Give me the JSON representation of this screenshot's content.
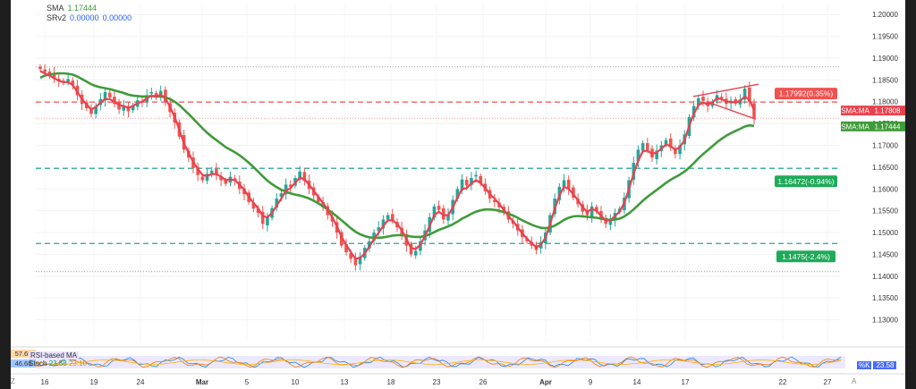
{
  "legend": {
    "sma_label": "SMA",
    "sma_value": "1.17444",
    "srv_label": "SRv2",
    "srv_value1": "0.00000",
    "srv_value2": "0.00000"
  },
  "colors": {
    "up": "#26a69a",
    "down": "#ef5350",
    "sma_fast": "#e8424f",
    "sma_slow": "#3f9b3a",
    "resistance": "#ef5350",
    "support": "#26a69a"
  },
  "chart_data": {
    "type": "candlestick",
    "symbol_hint": "EURUSD-like",
    "ylim": [
      1.125,
      1.2025
    ],
    "y_ticks": [
      "1.20000",
      "1.19500",
      "1.19000",
      "1.18500",
      "1.18000",
      "1.17500",
      "1.17000",
      "1.16500",
      "1.16000",
      "1.15500",
      "1.15000",
      "1.14500",
      "1.14000",
      "1.13500",
      "1.13000"
    ],
    "x_ticks": [
      "16",
      "19",
      "24",
      "Mar",
      "5",
      "10",
      "13",
      "18",
      "23",
      "26",
      "Apr",
      "9",
      "14",
      "17",
      "22",
      "27"
    ],
    "candles_close": [
      1.1875,
      1.1868,
      1.1862,
      1.1855,
      1.1848,
      1.1843,
      1.1852,
      1.1838,
      1.1815,
      1.1795,
      1.1785,
      1.1772,
      1.179,
      1.1806,
      1.1822,
      1.181,
      1.1795,
      1.1782,
      1.179,
      1.1778,
      1.1792,
      1.1803,
      1.1798,
      1.1815,
      1.1822,
      1.181,
      1.1825,
      1.18,
      1.1776,
      1.1752,
      1.172,
      1.169,
      1.1672,
      1.1648,
      1.1632,
      1.162,
      1.1635,
      1.1642,
      1.1632,
      1.162,
      1.1612,
      1.1628,
      1.1618,
      1.16,
      1.1588,
      1.157,
      1.1555,
      1.1545,
      1.152,
      1.1535,
      1.1556,
      1.1578,
      1.159,
      1.161,
      1.1605,
      1.1625,
      1.164,
      1.1618,
      1.16,
      1.1585,
      1.157,
      1.1558,
      1.154,
      1.1525,
      1.15,
      1.147,
      1.1455,
      1.144,
      1.1425,
      1.1445,
      1.1465,
      1.148,
      1.15,
      1.1512,
      1.153,
      1.154,
      1.1528,
      1.1512,
      1.1495,
      1.147,
      1.145,
      1.1458,
      1.148,
      1.1505,
      1.1535,
      1.156,
      1.1552,
      1.153,
      1.1542,
      1.1575,
      1.16,
      1.1622,
      1.1608,
      1.1625,
      1.1632,
      1.1612,
      1.1595,
      1.1578,
      1.157,
      1.1558,
      1.1545,
      1.153,
      1.152,
      1.1505,
      1.149,
      1.148,
      1.147,
      1.146,
      1.1478,
      1.15,
      1.154,
      1.1578,
      1.1605,
      1.162,
      1.16,
      1.158,
      1.1565,
      1.1548,
      1.154,
      1.156,
      1.1548,
      1.153,
      1.152,
      1.1528,
      1.1545,
      1.1555,
      1.158,
      1.162,
      1.166,
      1.169,
      1.1705,
      1.169,
      1.1672,
      1.1688,
      1.17,
      1.1712,
      1.1695,
      1.168,
      1.17,
      1.1725,
      1.1765,
      1.179,
      1.1808,
      1.1802,
      1.179,
      1.18,
      1.1815,
      1.1808,
      1.1795,
      1.1802,
      1.1796,
      1.1805,
      1.183,
      1.18,
      1.1762
    ],
    "sma_fast": [
      1.187,
      1.1865,
      1.186,
      1.1854,
      1.1848,
      1.1845,
      1.1845,
      1.1838,
      1.1822,
      1.1806,
      1.1794,
      1.1782,
      1.1788,
      1.1798,
      1.1806,
      1.1806,
      1.18,
      1.1792,
      1.179,
      1.1786,
      1.179,
      1.1797,
      1.18,
      1.1808,
      1.1814,
      1.1812,
      1.1816,
      1.1808,
      1.1788,
      1.1765,
      1.1735,
      1.1705,
      1.1683,
      1.1662,
      1.1646,
      1.1632,
      1.163,
      1.1634,
      1.1634,
      1.1628,
      1.162,
      1.1622,
      1.162,
      1.161,
      1.1598,
      1.1582,
      1.1568,
      1.1556,
      1.1538,
      1.1535,
      1.1545,
      1.1562,
      1.1578,
      1.1596,
      1.1602,
      1.1614,
      1.1626,
      1.1622,
      1.161,
      1.1596,
      1.1582,
      1.1568,
      1.1552,
      1.1535,
      1.1515,
      1.149,
      1.1472,
      1.1455,
      1.144,
      1.1442,
      1.1452,
      1.1468,
      1.1485,
      1.15,
      1.1515,
      1.1528,
      1.1528,
      1.152,
      1.1505,
      1.1485,
      1.1465,
      1.1462,
      1.1472,
      1.1492,
      1.1515,
      1.154,
      1.1548,
      1.154,
      1.154,
      1.1558,
      1.158,
      1.16,
      1.1602,
      1.1612,
      1.162,
      1.1614,
      1.1602,
      1.1588,
      1.1578,
      1.1566,
      1.1552,
      1.1538,
      1.1526,
      1.1512,
      1.1498,
      1.1486,
      1.1476,
      1.1466,
      1.1472,
      1.1488,
      1.152,
      1.1555,
      1.1585,
      1.1605,
      1.16,
      1.1588,
      1.1574,
      1.1558,
      1.1548,
      1.1554,
      1.155,
      1.1538,
      1.1528,
      1.1528,
      1.1538,
      1.1548,
      1.1568,
      1.16,
      1.1635,
      1.1665,
      1.1686,
      1.1688,
      1.168,
      1.1684,
      1.1692,
      1.1702,
      1.1698,
      1.169,
      1.1696,
      1.1712,
      1.1745,
      1.1772,
      1.1792,
      1.1798,
      1.1794,
      1.1798,
      1.1808,
      1.1806,
      1.18,
      1.18,
      1.1798,
      1.1802,
      1.1812,
      1.1804,
      1.1781
    ],
    "sma_slow": [
      1.1855,
      1.186,
      1.1862,
      1.1864,
      1.1865,
      1.1865,
      1.1864,
      1.1862,
      1.1858,
      1.1852,
      1.1846,
      1.184,
      1.1836,
      1.1833,
      1.1831,
      1.1829,
      1.1826,
      1.1823,
      1.182,
      1.1816,
      1.1814,
      1.1813,
      1.1812,
      1.1812,
      1.1813,
      1.1812,
      1.1812,
      1.181,
      1.1806,
      1.18,
      1.1792,
      1.1782,
      1.1772,
      1.1761,
      1.175,
      1.1739,
      1.1729,
      1.172,
      1.1712,
      1.1704,
      1.1696,
      1.169,
      1.1684,
      1.1677,
      1.1669,
      1.166,
      1.165,
      1.164,
      1.1629,
      1.1619,
      1.1611,
      1.1604,
      1.1598,
      1.1594,
      1.159,
      1.1587,
      1.1585,
      1.1582,
      1.1578,
      1.1573,
      1.1567,
      1.156,
      1.1553,
      1.1545,
      1.1537,
      1.1528,
      1.1519,
      1.151,
      1.1502,
      1.1496,
      1.1492,
      1.1489,
      1.1488,
      1.1488,
      1.1489,
      1.1491,
      1.1493,
      1.1494,
      1.1494,
      1.1493,
      1.1491,
      1.149,
      1.149,
      1.1492,
      1.1496,
      1.1501,
      1.1506,
      1.151,
      1.1514,
      1.1519,
      1.1525,
      1.1532,
      1.1537,
      1.1543,
      1.1548,
      1.1551,
      1.1553,
      1.1553,
      1.1552,
      1.155,
      1.1547,
      1.1543,
      1.1539,
      1.1534,
      1.1528,
      1.1523,
      1.1518,
      1.1514,
      1.1511,
      1.151,
      1.1512,
      1.1516,
      1.1522,
      1.1529,
      1.1534,
      1.1537,
      1.1538,
      1.1537,
      1.1536,
      1.1535,
      1.1534,
      1.1532,
      1.153,
      1.1529,
      1.153,
      1.1532,
      1.1537,
      1.1544,
      1.1553,
      1.1563,
      1.1573,
      1.1582,
      1.159,
      1.1598,
      1.1606,
      1.1614,
      1.1621,
      1.1627,
      1.1633,
      1.164,
      1.1649,
      1.1659,
      1.167,
      1.168,
      1.1689,
      1.1698,
      1.1707,
      1.1715,
      1.1722,
      1.1728,
      1.1733,
      1.1738,
      1.1743,
      1.1746,
      1.17444
    ],
    "levels": [
      {
        "price": 1.17992,
        "label": "1.17992(0.35%)",
        "kind": "resistance"
      },
      {
        "price": 1.16472,
        "label": "1.16472(-0.94%)",
        "kind": "support"
      },
      {
        "price": 1.1475,
        "label": "1.1475(-2.4%)",
        "kind": "support"
      }
    ],
    "price_tags": [
      {
        "label": "SMA:MA",
        "value": "1.17808",
        "price": 1.17808,
        "kind": "fast"
      },
      {
        "label": "SMA:MA",
        "value": "1.17444",
        "price": 1.17444,
        "kind": "slow"
      }
    ],
    "wedge": {
      "upper": [
        [
          1.1812,
          1.184
        ]
      ],
      "lower": [
        [
          1.18,
          1.176
        ]
      ]
    }
  },
  "oscillator": {
    "tag1": "57.65",
    "tag2": "46.66",
    "rsi_label": "RSI-based MA",
    "stoch_label": "Stoch",
    "stoch_v1": "23.58",
    "stoch_v2": "23.10",
    "right_key": "%K",
    "right_value": "23.58"
  },
  "footer": {
    "z": "Z",
    "a": "A"
  }
}
